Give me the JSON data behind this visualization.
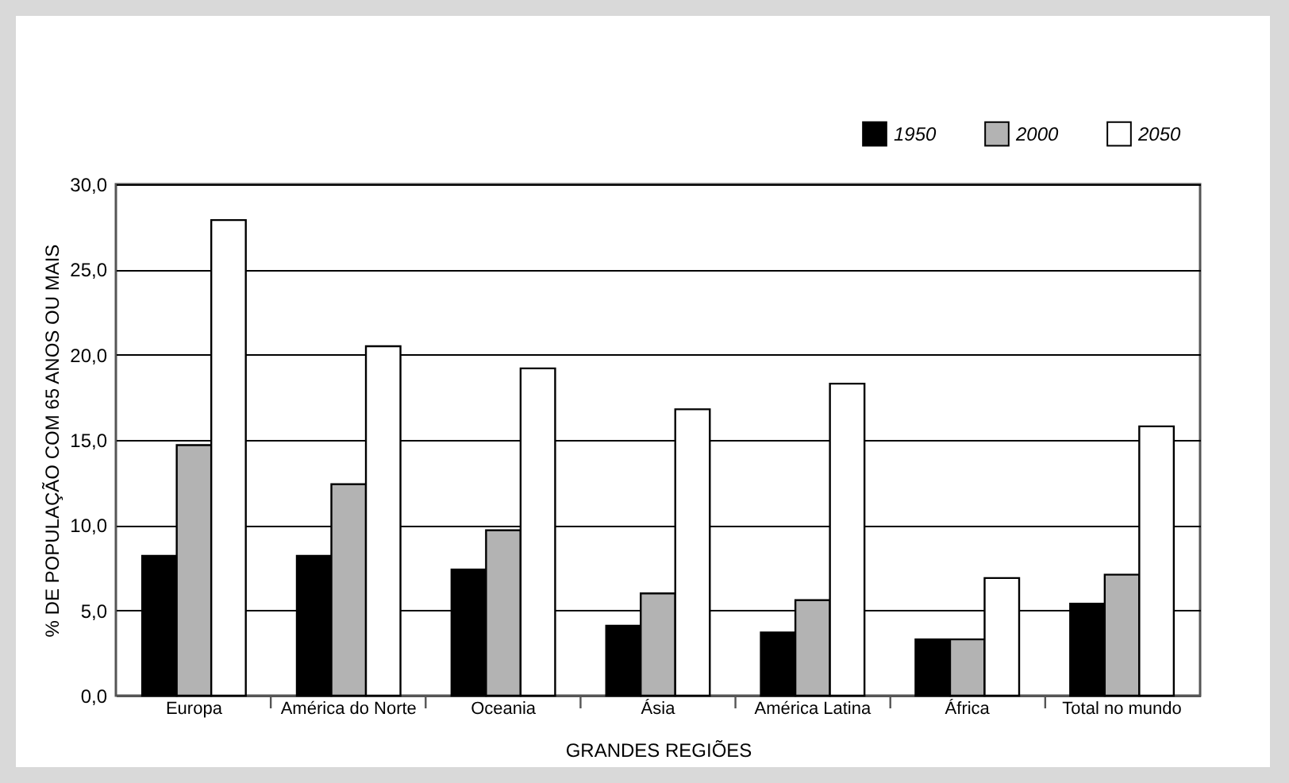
{
  "chart_data": {
    "type": "bar",
    "xlabel": "GRANDES REGIÕES",
    "ylabel": "% DE POPULAÇÃO COM 65 ANOS OU MAIS",
    "categories": [
      "Europa",
      "América do Norte",
      "Oceania",
      "Ásia",
      "América Latina",
      "África",
      "Total no mundo"
    ],
    "series": [
      {
        "name": "1950",
        "color": "#000000",
        "values": [
          8.2,
          8.2,
          7.4,
          4.1,
          3.7,
          3.3,
          5.4
        ]
      },
      {
        "name": "2000",
        "color": "#b3b3b3",
        "values": [
          14.7,
          12.4,
          9.7,
          6.0,
          5.6,
          3.3,
          7.1
        ]
      },
      {
        "name": "2050",
        "color": "#ffffff",
        "values": [
          27.9,
          20.5,
          19.2,
          16.8,
          18.3,
          6.9,
          15.8
        ]
      }
    ],
    "ylim": [
      0,
      30
    ],
    "yticks": [
      {
        "value": 0,
        "label": "0,0"
      },
      {
        "value": 5,
        "label": "5,0"
      },
      {
        "value": 10,
        "label": "10,0"
      },
      {
        "value": 15,
        "label": "15,0"
      },
      {
        "value": 20,
        "label": "20,0"
      },
      {
        "value": 25,
        "label": "25,0"
      },
      {
        "value": 30,
        "label": "30,0"
      }
    ],
    "grid": "y",
    "legend": "top right"
  }
}
